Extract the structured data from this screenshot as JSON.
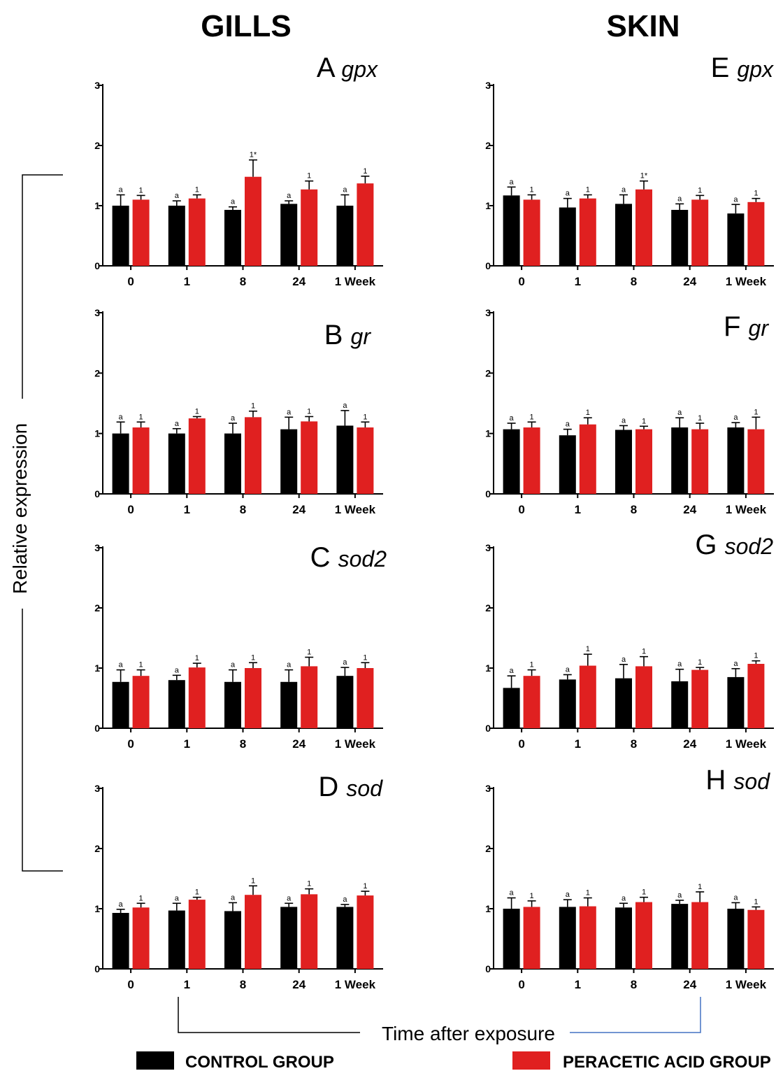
{
  "titles": {
    "left": "GILLS",
    "right": "SKIN"
  },
  "ylabel": "Relative expression",
  "xlabel": "Time after exposure",
  "legend": [
    {
      "label": "CONTROL GROUP",
      "color": "#000000"
    },
    {
      "label": "PERACETIC ACID GROUP",
      "color": "#e02020"
    }
  ],
  "colors": {
    "control": "#000000",
    "treatment": "#e02020",
    "bracket": "#000000",
    "bracket_right": "#4472c4"
  },
  "chart_data": [
    {
      "type": "bar",
      "letter": "A",
      "gene": "gpx",
      "tissue": "GILLS",
      "categories": [
        "0",
        "1",
        "8",
        "24",
        "1 Week"
      ],
      "ylim": [
        0,
        3
      ],
      "yticks": [
        "0",
        "1",
        "2",
        "3"
      ],
      "series": [
        {
          "name": "CONTROL GROUP",
          "values": [
            1.0,
            1.0,
            0.93,
            1.03,
            1.0
          ],
          "errors": [
            0.18,
            0.08,
            0.05,
            0.05,
            0.18
          ],
          "labels": [
            "a",
            "a",
            "a",
            "a",
            "a"
          ]
        },
        {
          "name": "PERACETIC ACID GROUP",
          "values": [
            1.1,
            1.12,
            1.48,
            1.27,
            1.37
          ],
          "errors": [
            0.07,
            0.06,
            0.28,
            0.14,
            0.12
          ],
          "labels": [
            "1",
            "1",
            "1*",
            "1",
            "1"
          ]
        }
      ]
    },
    {
      "type": "bar",
      "letter": "B",
      "gene": "gr",
      "tissue": "GILLS",
      "categories": [
        "0",
        "1",
        "8",
        "24",
        "1 Week"
      ],
      "ylim": [
        0,
        3
      ],
      "yticks": [
        "0",
        "1",
        "2",
        "3"
      ],
      "series": [
        {
          "name": "CONTROL GROUP",
          "values": [
            1.0,
            1.0,
            1.0,
            1.07,
            1.13
          ],
          "errors": [
            0.19,
            0.08,
            0.17,
            0.2,
            0.25
          ],
          "labels": [
            "a",
            "a",
            "a",
            "a",
            "a"
          ]
        },
        {
          "name": "PERACETIC ACID GROUP",
          "values": [
            1.1,
            1.25,
            1.27,
            1.2,
            1.1
          ],
          "errors": [
            0.09,
            0.03,
            0.1,
            0.08,
            0.09
          ],
          "labels": [
            "1",
            "1",
            "1",
            "1",
            "1"
          ]
        }
      ]
    },
    {
      "type": "bar",
      "letter": "C",
      "gene": "sod2",
      "tissue": "GILLS",
      "categories": [
        "0",
        "1",
        "8",
        "24",
        "1 Week"
      ],
      "ylim": [
        0,
        3
      ],
      "yticks": [
        "0",
        "1",
        "2",
        "3"
      ],
      "series": [
        {
          "name": "CONTROL GROUP",
          "values": [
            0.77,
            0.8,
            0.77,
            0.77,
            0.87
          ],
          "errors": [
            0.2,
            0.08,
            0.2,
            0.2,
            0.14
          ],
          "labels": [
            "a",
            "a",
            "a",
            "a",
            "a"
          ]
        },
        {
          "name": "PERACETIC ACID GROUP",
          "values": [
            0.87,
            1.01,
            1.0,
            1.03,
            1.0
          ],
          "errors": [
            0.1,
            0.07,
            0.09,
            0.15,
            0.09
          ],
          "labels": [
            "1",
            "1",
            "1",
            "1",
            "1"
          ]
        }
      ]
    },
    {
      "type": "bar",
      "letter": "D",
      "gene": "sod",
      "tissue": "GILLS",
      "categories": [
        "0",
        "1",
        "8",
        "24",
        "1 Week"
      ],
      "ylim": [
        0,
        3
      ],
      "yticks": [
        "0",
        "1",
        "2",
        "3"
      ],
      "series": [
        {
          "name": "CONTROL GROUP",
          "values": [
            0.93,
            0.97,
            0.96,
            1.03,
            1.03
          ],
          "errors": [
            0.06,
            0.12,
            0.14,
            0.06,
            0.04
          ],
          "labels": [
            "a",
            "a",
            "a",
            "a",
            "a"
          ]
        },
        {
          "name": "PERACETIC ACID GROUP",
          "values": [
            1.02,
            1.15,
            1.23,
            1.24,
            1.22
          ],
          "errors": [
            0.07,
            0.04,
            0.15,
            0.09,
            0.07
          ],
          "labels": [
            "1",
            "1",
            "1",
            "1",
            "1"
          ]
        }
      ]
    },
    {
      "type": "bar",
      "letter": "E",
      "gene": "gpx",
      "tissue": "SKIN",
      "categories": [
        "0",
        "1",
        "8",
        "24",
        "1 Week"
      ],
      "ylim": [
        0,
        3
      ],
      "yticks": [
        "0",
        "1",
        "2",
        "3"
      ],
      "series": [
        {
          "name": "CONTROL GROUP",
          "values": [
            1.17,
            0.97,
            1.03,
            0.93,
            0.87
          ],
          "errors": [
            0.14,
            0.15,
            0.15,
            0.1,
            0.15
          ],
          "labels": [
            "a",
            "a",
            "a",
            "a",
            "a"
          ]
        },
        {
          "name": "PERACETIC ACID GROUP",
          "values": [
            1.1,
            1.12,
            1.27,
            1.1,
            1.06
          ],
          "errors": [
            0.08,
            0.06,
            0.14,
            0.07,
            0.06
          ],
          "labels": [
            "1",
            "1",
            "1*",
            "1",
            "1"
          ]
        }
      ]
    },
    {
      "type": "bar",
      "letter": "F",
      "gene": "gr",
      "tissue": "SKIN",
      "categories": [
        "0",
        "1",
        "8",
        "24",
        "1 Week"
      ],
      "ylim": [
        0,
        3
      ],
      "yticks": [
        "0",
        "1",
        "2",
        "3"
      ],
      "series": [
        {
          "name": "CONTROL GROUP",
          "values": [
            1.07,
            0.97,
            1.06,
            1.1,
            1.1
          ],
          "errors": [
            0.1,
            0.1,
            0.07,
            0.16,
            0.08
          ],
          "labels": [
            "a",
            "a",
            "a",
            "a",
            "a"
          ]
        },
        {
          "name": "PERACETIC ACID GROUP",
          "values": [
            1.1,
            1.15,
            1.07,
            1.07,
            1.07
          ],
          "errors": [
            0.09,
            0.11,
            0.05,
            0.1,
            0.2
          ],
          "labels": [
            "1",
            "1",
            "1",
            "1",
            "1"
          ]
        }
      ]
    },
    {
      "type": "bar",
      "letter": "G",
      "gene": "sod2",
      "tissue": "SKIN",
      "categories": [
        "0",
        "1",
        "8",
        "24",
        "1 Week"
      ],
      "ylim": [
        0,
        3
      ],
      "yticks": [
        "0",
        "1",
        "2",
        "3"
      ],
      "series": [
        {
          "name": "CONTROL GROUP",
          "values": [
            0.67,
            0.81,
            0.83,
            0.78,
            0.85
          ],
          "errors": [
            0.2,
            0.08,
            0.23,
            0.2,
            0.14
          ],
          "labels": [
            "a",
            "a",
            "a",
            "a",
            "a"
          ]
        },
        {
          "name": "PERACETIC ACID GROUP",
          "values": [
            0.87,
            1.04,
            1.03,
            0.97,
            1.07
          ],
          "errors": [
            0.1,
            0.19,
            0.16,
            0.04,
            0.05
          ],
          "labels": [
            "1",
            "1",
            "1",
            "1",
            "1"
          ]
        }
      ]
    },
    {
      "type": "bar",
      "letter": "H",
      "gene": "sod",
      "tissue": "SKIN",
      "categories": [
        "0",
        "1",
        "8",
        "24",
        "1 Week"
      ],
      "ylim": [
        0,
        3
      ],
      "yticks": [
        "0",
        "1",
        "2",
        "3"
      ],
      "series": [
        {
          "name": "CONTROL GROUP",
          "values": [
            1.0,
            1.03,
            1.02,
            1.08,
            1.0
          ],
          "errors": [
            0.18,
            0.12,
            0.07,
            0.06,
            0.1
          ],
          "labels": [
            "a",
            "a",
            "a",
            "a",
            "a"
          ]
        },
        {
          "name": "PERACETIC ACID GROUP",
          "values": [
            1.03,
            1.04,
            1.11,
            1.11,
            0.98
          ],
          "errors": [
            0.1,
            0.14,
            0.08,
            0.17,
            0.05
          ],
          "labels": [
            "1",
            "1",
            "1",
            "1",
            "1"
          ]
        }
      ]
    }
  ]
}
